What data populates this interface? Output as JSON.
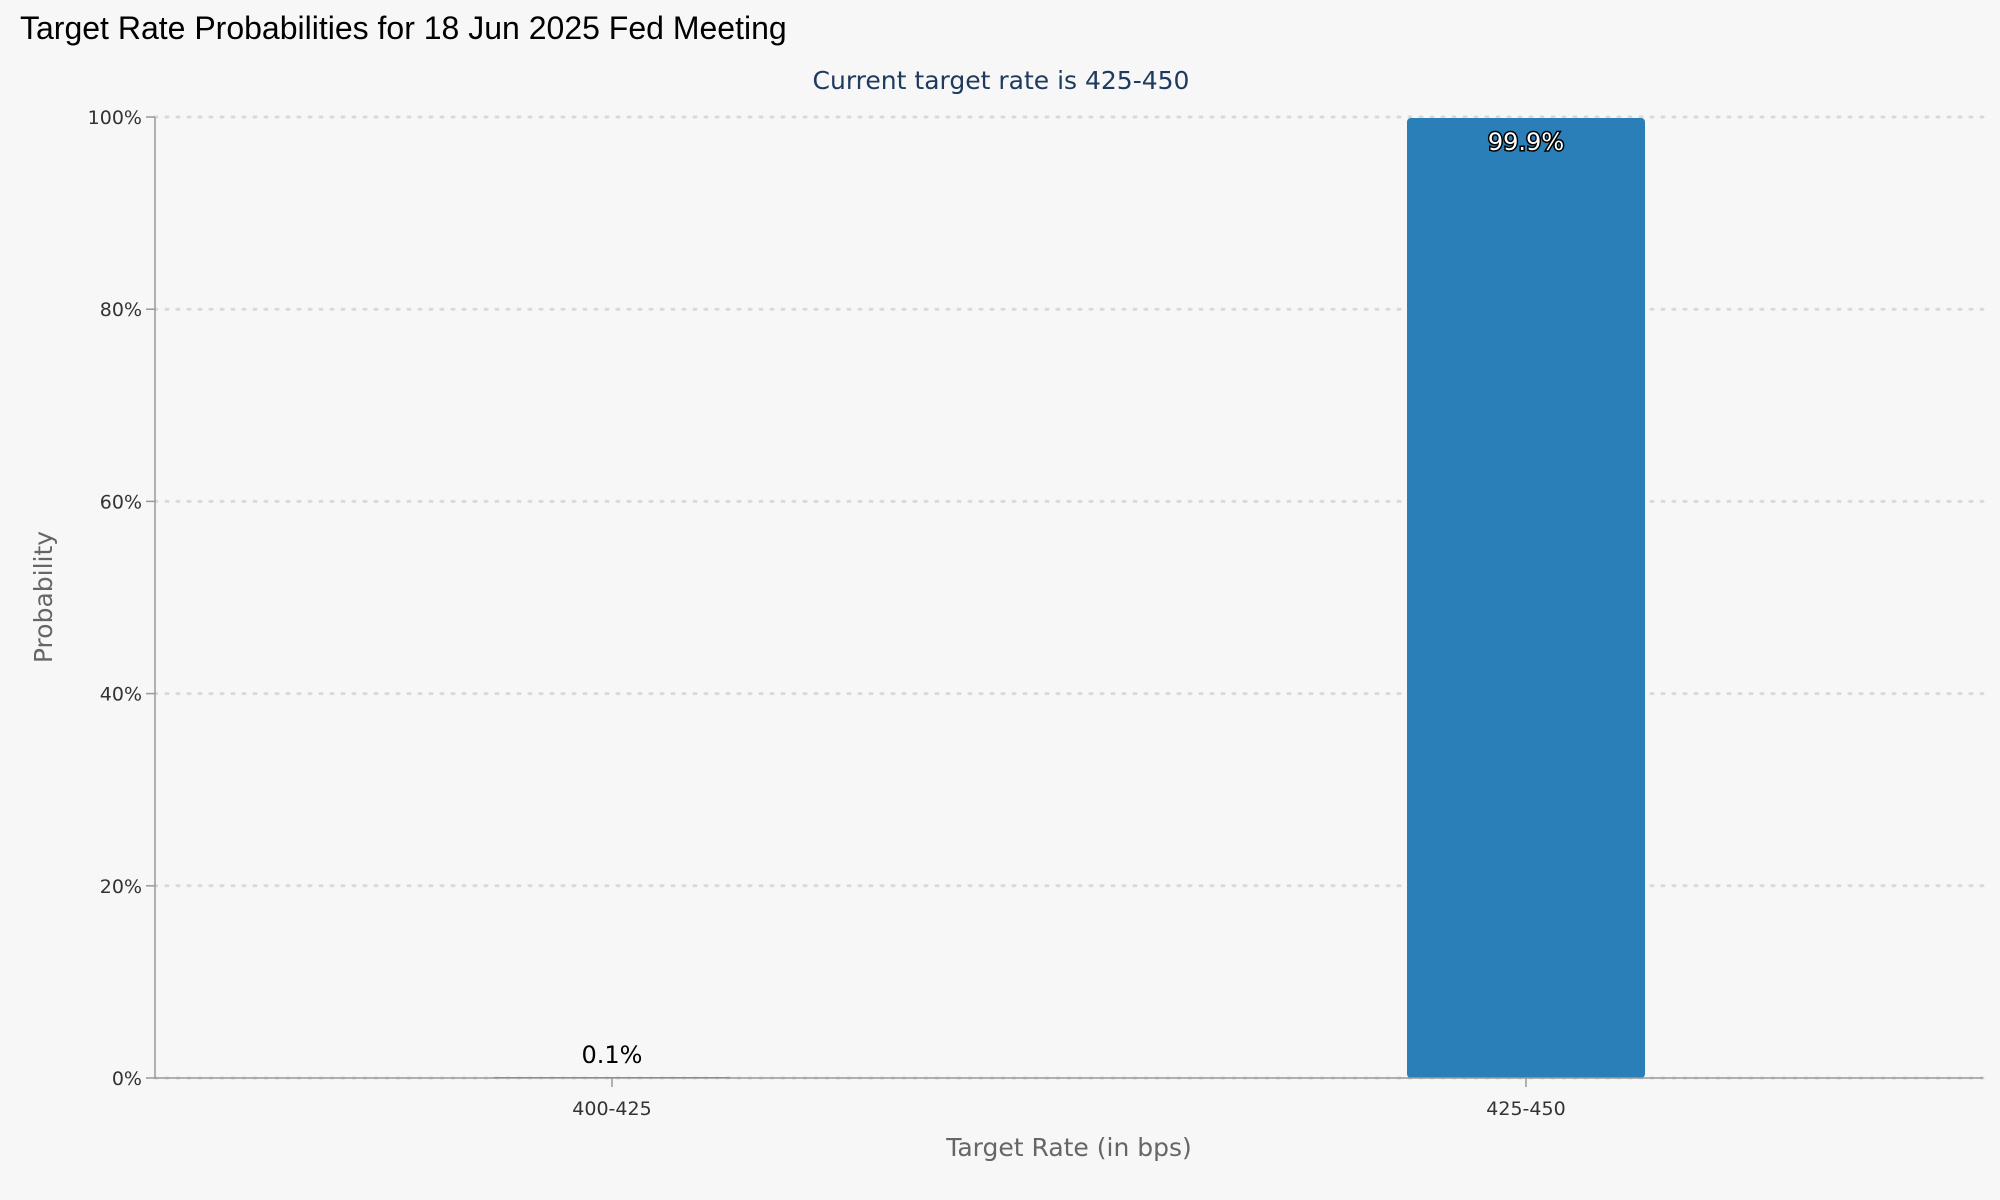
{
  "header": {
    "title": "Target Rate Probabilities for 18 Jun 2025 Fed Meeting"
  },
  "chart_data": {
    "type": "bar",
    "title": "Target Rate Probabilities for 18 Jun 2025 Fed Meeting",
    "subtitle": "Current target rate is 425-450",
    "xlabel": "Target Rate (in bps)",
    "ylabel": "Probability",
    "categories": [
      "400-425",
      "425-450"
    ],
    "values": [
      0.1,
      99.9
    ],
    "value_labels": [
      "0.1%",
      "99.9%"
    ],
    "ylim": [
      0,
      100
    ],
    "yticks": [
      0,
      20,
      40,
      60,
      80,
      100
    ],
    "ytick_labels": [
      "0%",
      "20%",
      "40%",
      "60%",
      "80%",
      "100%"
    ],
    "grid": "horizontal-dotted",
    "colors": {
      "bar": "#2a7fb8",
      "grid": "#d9d9d9",
      "axis": "#999999"
    }
  }
}
